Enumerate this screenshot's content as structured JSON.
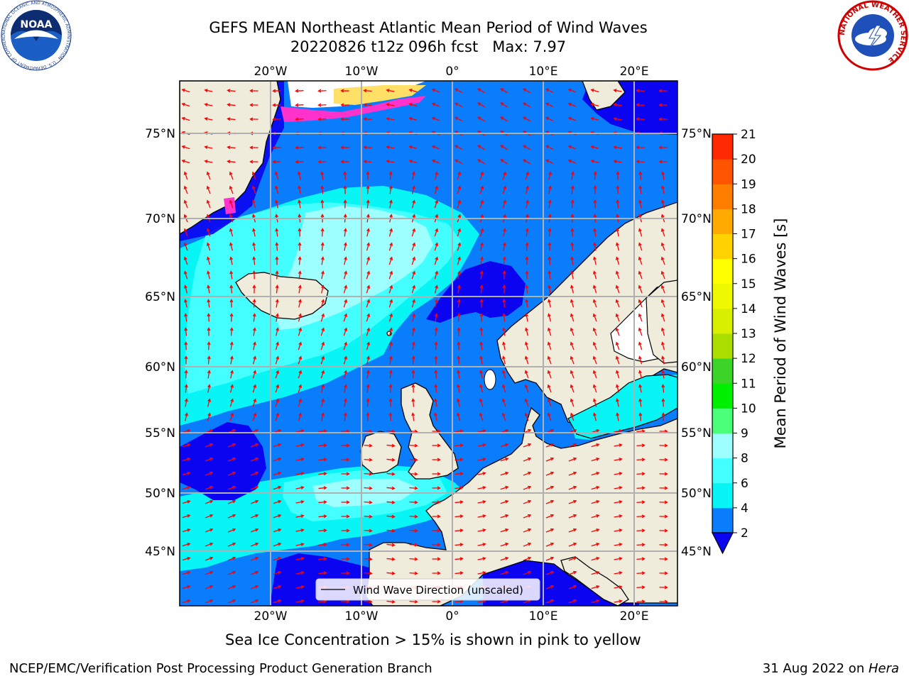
{
  "header": {
    "title_line1": "GEFS MEAN Northeast Atlantic Mean Period of Wind Waves",
    "title_line2": "20220826 t12z 096h fcst   Max: 7.97"
  },
  "logos": {
    "noaa_text": "NOAA",
    "noaa_ring_text": "NATIONAL OCEANIC AND ATMOSPHERIC ADMINISTRATION · U.S. DEPARTMENT OF COMMERCE",
    "nws_ring_text": "NATIONAL WEATHER SERVICE"
  },
  "map": {
    "lon_labels": [
      "20°W",
      "10°W",
      "0°",
      "10°E",
      "20°E"
    ],
    "lat_labels": [
      "75°N",
      "70°N",
      "65°N",
      "60°N",
      "55°N",
      "50°N",
      "45°N"
    ],
    "legend_label": "Wind Wave Direction (unscaled)",
    "colors": {
      "land": "#efecdc",
      "ocean_2_4": "#0a7dfd",
      "ocean_lt2": "#0a04f0",
      "ocean_4_6": "#07f5f5",
      "ocean_6_8": "#44ffff",
      "ocean_8_9": "#9effff",
      "sea_ice_white": "#ffffff",
      "arrow": "#ff0000",
      "grid": "#b0b0b0",
      "coast": "#000000"
    }
  },
  "colorbar": {
    "label": "Mean Period of Wind Waves [s]",
    "ticks": [
      "2",
      "4",
      "6",
      "8",
      "9",
      "10",
      "11",
      "12",
      "13",
      "14",
      "15",
      "16",
      "17",
      "18",
      "19",
      "20",
      "21"
    ],
    "colors": [
      "#0a7dfd",
      "#07f5f5",
      "#44ffff",
      "#9effff",
      "#4bff7a",
      "#00f000",
      "#3cd428",
      "#aade00",
      "#d8f000",
      "#eef800",
      "#ffff00",
      "#ffd200",
      "#ffaa00",
      "#ff7e00",
      "#ff5400",
      "#ff2800"
    ],
    "under_color": "#0a04f0"
  },
  "subtitle": "Sea Ice Concentration > 15% is shown in pink to yellow",
  "footer": {
    "left": "NCEP/EMC/Verification Post Processing Product Generation Branch",
    "right_prefix": "31 Aug 2022 on ",
    "right_host": "Hera"
  }
}
